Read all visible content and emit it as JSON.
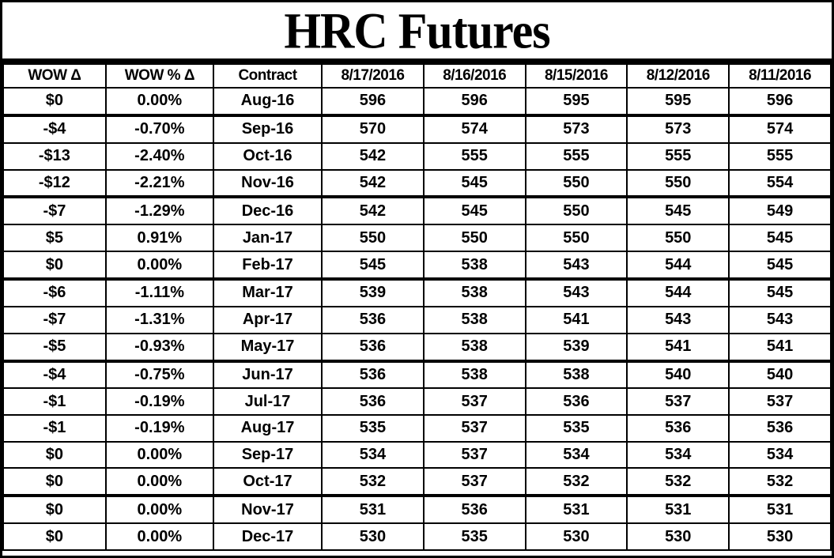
{
  "title": "HRC Futures",
  "colors": {
    "text": "#000000",
    "background": "#ffffff",
    "border": "#000000"
  },
  "chart_data": {
    "type": "table",
    "title": "HRC Futures",
    "columns": [
      "WOW Δ",
      "WOW % Δ",
      "Contract",
      "8/17/2016",
      "8/16/2016",
      "8/15/2016",
      "8/12/2016",
      "8/11/2016"
    ],
    "rows": [
      [
        "$0",
        "0.00%",
        "Aug-16",
        596,
        596,
        595,
        595,
        596
      ],
      [
        "-$4",
        "-0.70%",
        "Sep-16",
        570,
        574,
        573,
        573,
        574
      ],
      [
        "-$13",
        "-2.40%",
        "Oct-16",
        542,
        555,
        555,
        555,
        555
      ],
      [
        "-$12",
        "-2.21%",
        "Nov-16",
        542,
        545,
        550,
        550,
        554
      ],
      [
        "-$7",
        "-1.29%",
        "Dec-16",
        542,
        545,
        550,
        545,
        549
      ],
      [
        "$5",
        "0.91%",
        "Jan-17",
        550,
        550,
        550,
        550,
        545
      ],
      [
        "$0",
        "0.00%",
        "Feb-17",
        545,
        538,
        543,
        544,
        545
      ],
      [
        "-$6",
        "-1.11%",
        "Mar-17",
        539,
        538,
        543,
        544,
        545
      ],
      [
        "-$7",
        "-1.31%",
        "Apr-17",
        536,
        538,
        541,
        543,
        543
      ],
      [
        "-$5",
        "-0.93%",
        "May-17",
        536,
        538,
        539,
        541,
        541
      ],
      [
        "-$4",
        "-0.75%",
        "Jun-17",
        536,
        538,
        538,
        540,
        540
      ],
      [
        "-$1",
        "-0.19%",
        "Jul-17",
        536,
        537,
        536,
        537,
        537
      ],
      [
        "-$1",
        "-0.19%",
        "Aug-17",
        535,
        537,
        535,
        536,
        536
      ],
      [
        "$0",
        "0.00%",
        "Sep-17",
        534,
        537,
        534,
        534,
        534
      ],
      [
        "$0",
        "0.00%",
        "Oct-17",
        532,
        537,
        532,
        532,
        532
      ],
      [
        "$0",
        "0.00%",
        "Nov-17",
        531,
        536,
        531,
        531,
        531
      ],
      [
        "$0",
        "0.00%",
        "Dec-17",
        530,
        535,
        530,
        530,
        530
      ]
    ],
    "layout": {
      "group_separator_above_contracts": [
        "Sep-16",
        "Dec-16",
        "Mar-17",
        "Jun-17",
        "Nov-17"
      ],
      "grid": "all-borders",
      "text_align": "center"
    }
  }
}
